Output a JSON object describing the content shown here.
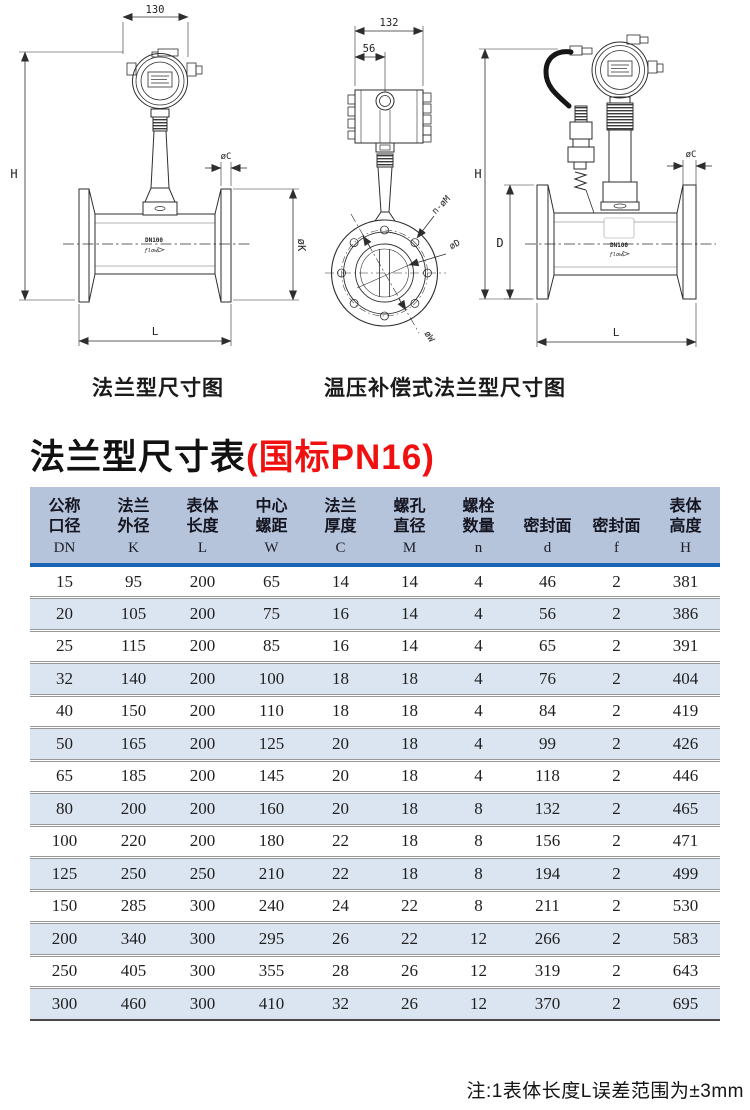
{
  "diagrams": {
    "caption_left": "法兰型尺寸图",
    "caption_right": "温压补偿式法兰型尺寸图",
    "d1": {
      "dim_width": "130",
      "dim_height": "H",
      "dim_flange_thickness": "øC",
      "dim_flange_diameter": "øK",
      "dim_length": "L",
      "body_text": "DN100",
      "body_logo": "ƒlow"
    },
    "d2": {
      "dim_width": "132",
      "dim_offset": "56",
      "dim_bolt_holes": "n-øM",
      "dim_bore": "øD",
      "dim_bolt_circle": "øW"
    },
    "d3": {
      "dim_height": "H",
      "dim_body_height": "D",
      "dim_flange_thickness": "øC",
      "dim_length": "L",
      "body_text": "DN100",
      "body_logo": "ƒlow"
    }
  },
  "title": {
    "main": "法兰型尺寸表",
    "highlight": "(国标PN16)",
    "highlight_color": "#f01010"
  },
  "table": {
    "header_bg": "#b5c4da",
    "rule_color": "#1a64b6",
    "stripe_color": "#dbe5f1",
    "columns": [
      {
        "cn": "公称 口径",
        "code": "DN"
      },
      {
        "cn": "法兰 外径",
        "code": "K"
      },
      {
        "cn": "表体 长度",
        "code": "L"
      },
      {
        "cn": "中心 螺距",
        "code": "W"
      },
      {
        "cn": "法兰 厚度",
        "code": "C"
      },
      {
        "cn": "螺孔 直径",
        "code": "M"
      },
      {
        "cn": "螺栓 数量",
        "code": "n"
      },
      {
        "cn": "密封面",
        "code": "d"
      },
      {
        "cn": "密封面",
        "code": "f"
      },
      {
        "cn": "表体 高度",
        "code": "H"
      }
    ],
    "rows": [
      [
        15,
        95,
        200,
        65,
        14,
        14,
        4,
        46,
        2,
        381
      ],
      [
        20,
        105,
        200,
        75,
        16,
        14,
        4,
        56,
        2,
        386
      ],
      [
        25,
        115,
        200,
        85,
        16,
        14,
        4,
        65,
        2,
        391
      ],
      [
        32,
        140,
        200,
        100,
        18,
        18,
        4,
        76,
        2,
        404
      ],
      [
        40,
        150,
        200,
        110,
        18,
        18,
        4,
        84,
        2,
        419
      ],
      [
        50,
        165,
        200,
        125,
        20,
        18,
        4,
        99,
        2,
        426
      ],
      [
        65,
        185,
        200,
        145,
        20,
        18,
        4,
        118,
        2,
        446
      ],
      [
        80,
        200,
        200,
        160,
        20,
        18,
        8,
        132,
        2,
        465
      ],
      [
        100,
        220,
        200,
        180,
        22,
        18,
        8,
        156,
        2,
        471
      ],
      [
        125,
        250,
        250,
        210,
        22,
        18,
        8,
        194,
        2,
        499
      ],
      [
        150,
        285,
        300,
        240,
        24,
        22,
        8,
        211,
        2,
        530
      ],
      [
        200,
        340,
        300,
        295,
        26,
        22,
        12,
        266,
        2,
        583
      ],
      [
        250,
        405,
        300,
        355,
        28,
        26,
        12,
        319,
        2,
        643
      ],
      [
        300,
        460,
        300,
        410,
        32,
        26,
        12,
        370,
        2,
        695
      ]
    ]
  },
  "note": "注:1表体长度L误差范围为±3mm"
}
